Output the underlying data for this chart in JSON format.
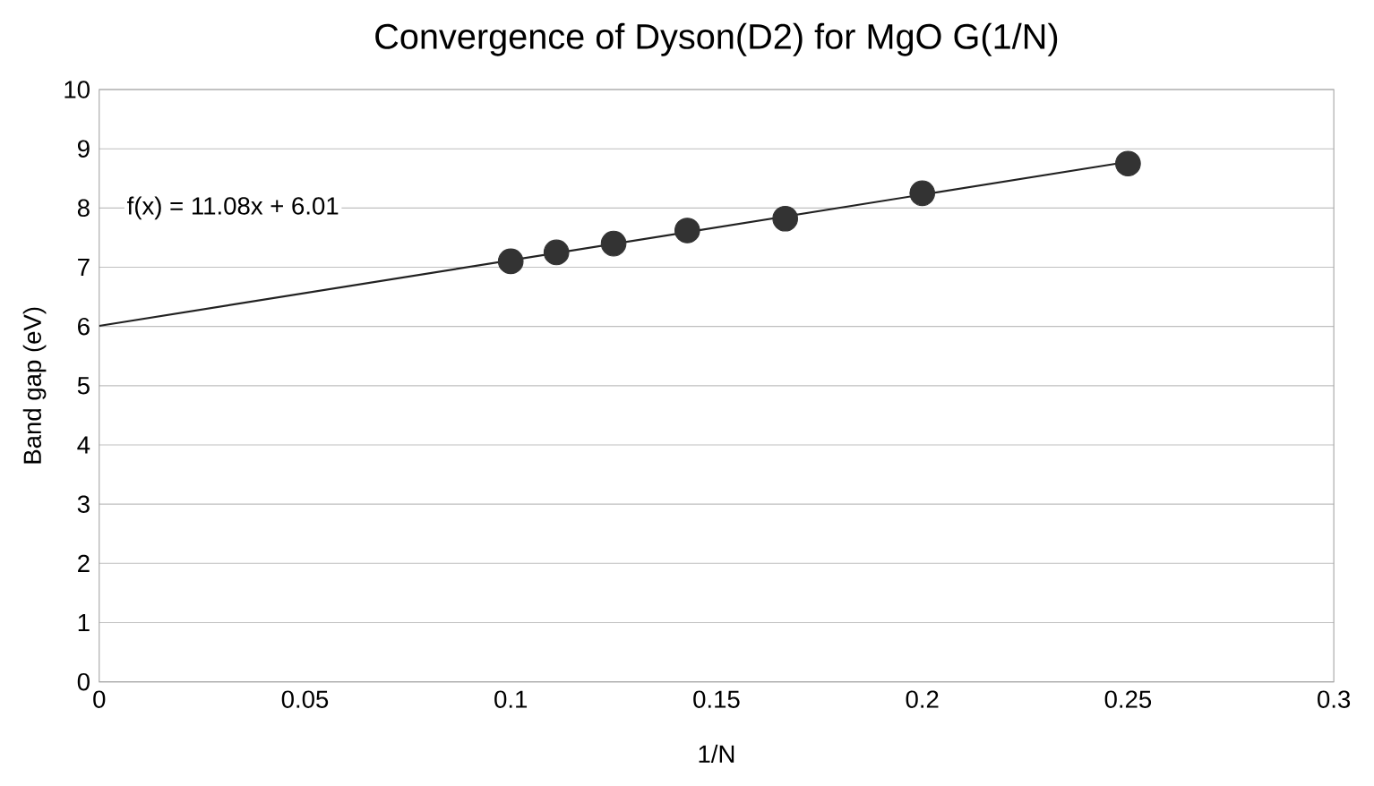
{
  "chart_data": {
    "type": "scatter",
    "title": "Convergence of Dyson(D2) for MgO G(1/N)",
    "xlabel": "1/N",
    "ylabel": "Band gap (eV)",
    "annotations": [
      "f(x) = 11.08x + 6.01"
    ],
    "series": [
      {
        "color": "#333333",
        "marker": "circle",
        "x": [
          0.1,
          0.1111,
          0.125,
          0.1429,
          0.1667,
          0.2,
          0.25
        ],
        "values": [
          7.1,
          7.25,
          7.4,
          7.62,
          7.82,
          8.25,
          8.75
        ]
      },
      {
        "type": "line",
        "color": "#222222",
        "marker": "none",
        "x": [
          0,
          0.25
        ],
        "values": [
          6.01,
          8.78
        ]
      }
    ],
    "xlim": [
      0,
      0.3
    ],
    "xticks": [
      0,
      0.05,
      0.1,
      0.15,
      0.2,
      0.25,
      0.3
    ],
    "ylim": [
      0,
      10
    ],
    "yticks": [
      0,
      1,
      2,
      3,
      4,
      5,
      6,
      7,
      8,
      9,
      10
    ],
    "grid": "y"
  }
}
